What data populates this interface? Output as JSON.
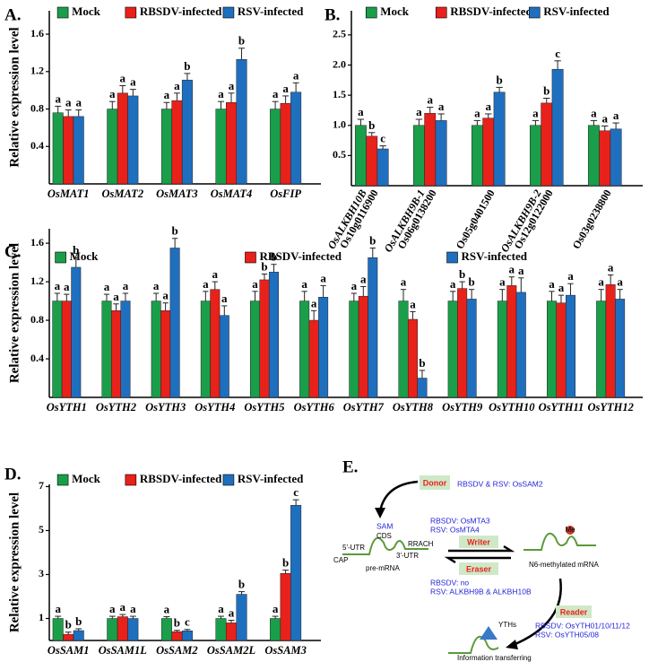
{
  "chart_data": [
    {
      "type": "bar",
      "panel": "A.",
      "ylabel": "Relative expression level",
      "categories": [
        "OsMAT1",
        "OsMAT2",
        "OsMAT3",
        "OsMAT4",
        "OsFIP"
      ],
      "series": [
        {
          "name": "Mock",
          "color": "#1a9e4a",
          "values": [
            0.76,
            0.8,
            0.8,
            0.8,
            0.8
          ],
          "errors": [
            0.07,
            0.08,
            0.07,
            0.08,
            0.08
          ],
          "letters": [
            "a",
            "a",
            "a",
            "a",
            "a"
          ]
        },
        {
          "name": "RBSDV-infected",
          "color": "#e8211a",
          "values": [
            0.72,
            0.97,
            0.89,
            0.87,
            0.86
          ],
          "errors": [
            0.07,
            0.08,
            0.08,
            0.1,
            0.08
          ],
          "letters": [
            "a",
            "a",
            "a",
            "a",
            "a"
          ]
        },
        {
          "name": "RSV-infected",
          "color": "#1f6fbf",
          "values": [
            0.72,
            0.94,
            1.11,
            1.33,
            0.98
          ],
          "errors": [
            0.07,
            0.07,
            0.07,
            0.12,
            0.1
          ],
          "letters": [
            "a",
            "a",
            "b",
            "b",
            "a"
          ]
        }
      ],
      "ylim": [
        0,
        1.85
      ],
      "yticks": [
        0.4,
        0.8,
        1.2,
        1.6
      ]
    },
    {
      "type": "bar",
      "panel": "B.",
      "categories": [
        "Os10g0116900",
        "Os06g0138200",
        "Os05g0401500",
        "Os12g0122000",
        "Os03g0238800"
      ],
      "category_names": [
        "OsALKBH10B",
        "OsALKBH9B-1",
        null,
        "OsALKBH9B-2",
        null
      ],
      "series": [
        {
          "name": "Mock",
          "color": "#1a9e4a",
          "values": [
            1.0,
            1.0,
            1.0,
            1.0,
            1.0
          ],
          "errors": [
            0.1,
            0.1,
            0.08,
            0.08,
            0.08
          ],
          "letters": [
            "a",
            "a",
            "a",
            "a",
            "a"
          ]
        },
        {
          "name": "RBSDV-infected",
          "color": "#e8211a",
          "values": [
            0.82,
            1.2,
            1.12,
            1.37,
            0.91
          ],
          "errors": [
            0.06,
            0.1,
            0.07,
            0.08,
            0.08
          ],
          "letters": [
            "b",
            "a",
            "a",
            "b",
            "a"
          ]
        },
        {
          "name": "RSV-infected",
          "color": "#1f6fbf",
          "values": [
            0.61,
            1.08,
            1.55,
            1.93,
            0.94
          ],
          "errors": [
            0.05,
            0.11,
            0.08,
            0.14,
            0.1
          ],
          "letters": [
            "c",
            "a",
            "b",
            "c",
            "a"
          ]
        }
      ],
      "ylim": [
        0,
        2.9
      ],
      "yticks": [
        0.5,
        {
          "value": 1,
          "label": "1.0"
        },
        1.5,
        {
          "value": 2,
          "label": "2.0"
        },
        2.5
      ]
    },
    {
      "type": "bar",
      "panel": "C.",
      "ylabel": "Relative expression level",
      "categories": [
        "OsYTH1",
        "OsYTH2",
        "OsYTH3",
        "OsYTH4",
        "OsYTH5",
        "OsYTH6",
        "OsYTH7",
        "OsYTH8",
        "OsYTH9",
        "OsYTH10",
        "OsYTH11",
        "OsYTH12"
      ],
      "series": [
        {
          "name": "Mock",
          "color": "#1a9e4a",
          "values": [
            1.0,
            1.0,
            1.0,
            1.0,
            1.0,
            1.0,
            1.0,
            1.0,
            1.0,
            1.0,
            1.0,
            1.0
          ],
          "errors": [
            0.08,
            0.07,
            0.08,
            0.1,
            0.1,
            0.1,
            0.08,
            0.12,
            0.1,
            0.12,
            0.1,
            0.12
          ],
          "letters": [
            "a",
            "a",
            "a",
            "a",
            "a",
            "a",
            "a",
            "a",
            "a",
            "a",
            "a",
            "a"
          ]
        },
        {
          "name": "RBSDV-infected",
          "color": "#e8211a",
          "values": [
            1.0,
            0.9,
            0.9,
            1.12,
            1.22,
            0.8,
            1.05,
            0.81,
            1.13,
            1.16,
            0.98,
            1.17
          ],
          "errors": [
            0.07,
            0.07,
            0.08,
            0.08,
            0.06,
            0.1,
            0.1,
            0.08,
            0.07,
            0.09,
            0.08,
            0.1
          ],
          "letters": [
            "a",
            "a",
            "a",
            "a",
            "b",
            "a",
            "a",
            "a",
            "b",
            "a",
            "a",
            "a"
          ]
        },
        {
          "name": "RSV-infected",
          "color": "#1f6fbf",
          "values": [
            1.35,
            1.0,
            1.55,
            0.85,
            1.3,
            1.04,
            1.45,
            0.2,
            1.02,
            1.09,
            1.06,
            1.02
          ],
          "errors": [
            0.1,
            0.08,
            0.1,
            0.1,
            0.08,
            0.12,
            0.1,
            0.08,
            0.1,
            0.15,
            0.12,
            0.1
          ],
          "letters": [
            "b",
            "a",
            "b",
            "a",
            "b",
            "a",
            "b",
            "b",
            "b",
            "a",
            "a",
            "a"
          ]
        }
      ],
      "ylim": [
        0,
        1.75
      ],
      "yticks": [
        0.4,
        0.8,
        1.2,
        1.6
      ]
    },
    {
      "type": "bar",
      "panel": "D.",
      "ylabel": "Relative expression level",
      "categories": [
        "OsSAM1",
        "OsSAM1L",
        "OsSAM2",
        "OsSAM2L",
        "OsSAM3"
      ],
      "series": [
        {
          "name": "Mock",
          "color": "#1a9e4a",
          "values": [
            1.0,
            1.0,
            1.0,
            1.0,
            1.0
          ],
          "errors": [
            0.1,
            0.1,
            0.08,
            0.1,
            0.1
          ],
          "letters": [
            "a",
            "a",
            "a",
            "a",
            "a"
          ]
        },
        {
          "name": "RBSDV-infected",
          "color": "#e8211a",
          "values": [
            0.28,
            1.08,
            0.4,
            0.8,
            3.05
          ],
          "errors": [
            0.1,
            0.1,
            0.06,
            0.12,
            0.15
          ],
          "letters": [
            "b",
            "a",
            "b",
            "a",
            "b"
          ]
        },
        {
          "name": "RSV-infected",
          "color": "#1f6fbf",
          "values": [
            0.45,
            1.0,
            0.44,
            2.1,
            6.15
          ],
          "errors": [
            0.08,
            0.1,
            0.06,
            0.12,
            0.25
          ],
          "letters": [
            "b",
            "a",
            "c",
            "b",
            "c"
          ]
        }
      ],
      "ylim": [
        0,
        7.1
      ],
      "yticks": [
        1,
        3,
        5,
        7
      ]
    }
  ],
  "diagram": {
    "panel": "E.",
    "donor": "Donor",
    "donor_note": "RBSDV & RSV: OsSAM2",
    "sam": "SAM",
    "writer": "Writer",
    "writer_notes": [
      "RBSDV: OsMTA3",
      "RSV: OsMTA4"
    ],
    "eraser": "Eraser",
    "eraser_notes": [
      "RBSDV: no",
      "RSV: ALKBH9B & ALKBH10B"
    ],
    "reader": "Reader",
    "reader_notes": [
      "RBSDV: OsYTH01/10/11/12",
      "RSV: OsYTH05/08"
    ],
    "utr5": "5'-UTR",
    "cds": "CDS",
    "utr3": "3'-UTR",
    "cap": "CAP",
    "motif": "RRACH",
    "me": "Me",
    "yths": "YTHs",
    "pre": "pre-mRNA",
    "methylated": "N6-methylated mRNA",
    "info": "Information transferring"
  }
}
